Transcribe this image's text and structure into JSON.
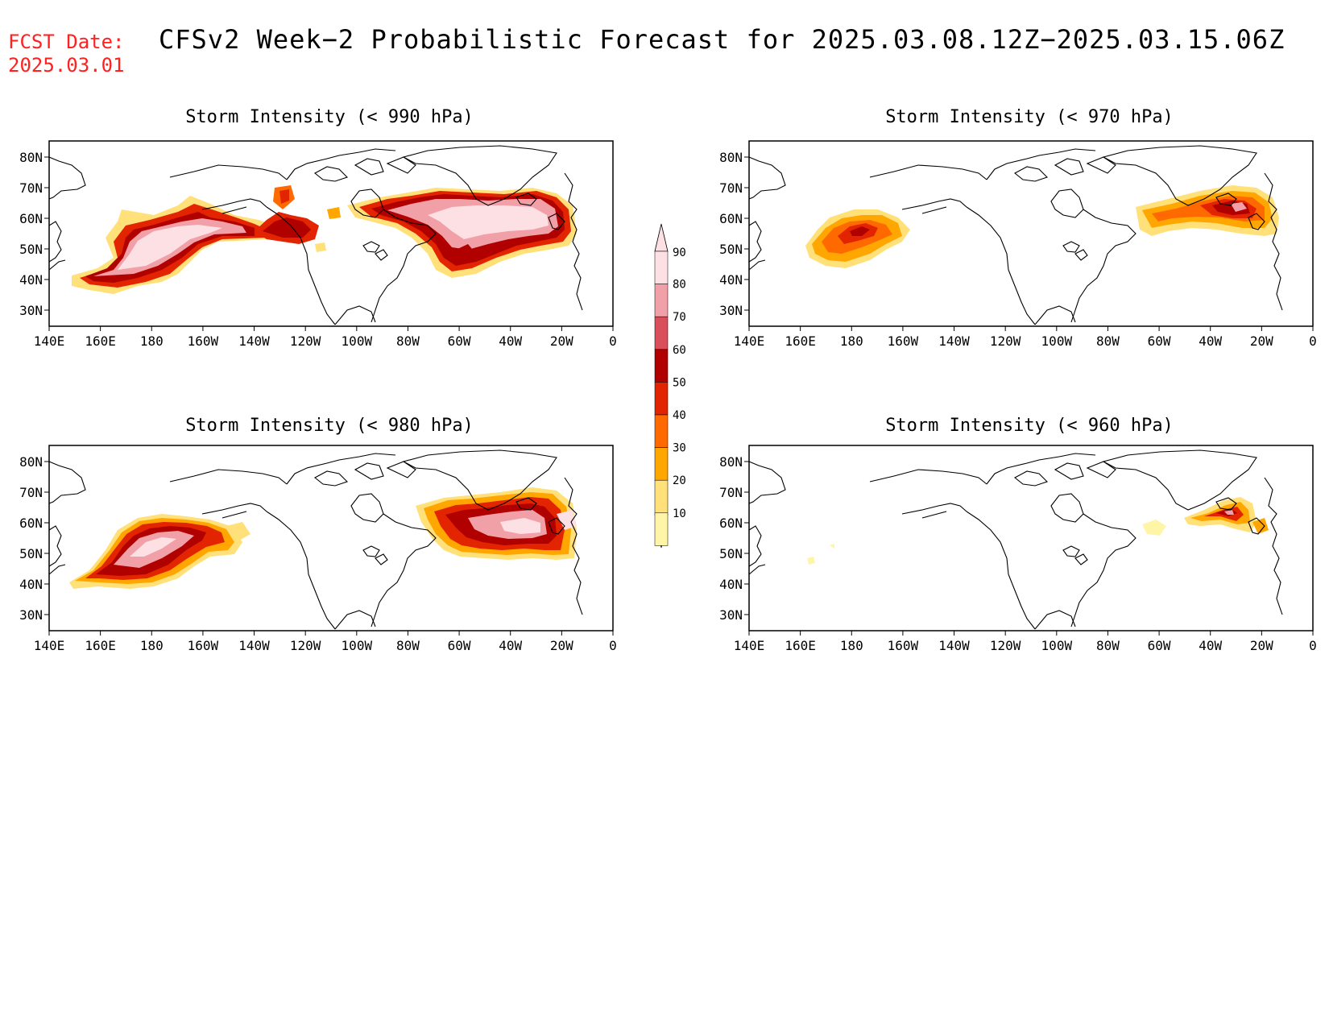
{
  "header": {
    "fcst_label": "FCST Date:",
    "fcst_date": "2025.03.01",
    "title": "CFSv2 Week−2 Probabilistic Forecast for 2025.03.08.12Z−2025.03.15.06Z"
  },
  "axes": {
    "lon_labels": [
      "140E",
      "160E",
      "180",
      "160W",
      "140W",
      "120W",
      "100W",
      "80W",
      "60W",
      "40W",
      "20W",
      "0"
    ],
    "lat_labels": [
      "80N",
      "70N",
      "60N",
      "50N",
      "40N",
      "30N"
    ]
  },
  "colorbar": {
    "levels": [
      "10",
      "20",
      "30",
      "40",
      "50",
      "60",
      "70",
      "80",
      "90"
    ],
    "colors": [
      "#fff5a6",
      "#ffe079",
      "#ffa600",
      "#ff6a00",
      "#e32400",
      "#b00000",
      "#d94f5a",
      "#f2a0a8",
      "#fde0e4"
    ]
  },
  "panels": [
    {
      "id": "p990",
      "title": "Storm Intensity (< 990 hPa)"
    },
    {
      "id": "p970",
      "title": "Storm Intensity (< 970 hPa)"
    },
    {
      "id": "p980",
      "title": "Storm Intensity (< 980 hPa)"
    },
    {
      "id": "p960",
      "title": "Storm Intensity (< 960 hPa)"
    }
  ]
}
